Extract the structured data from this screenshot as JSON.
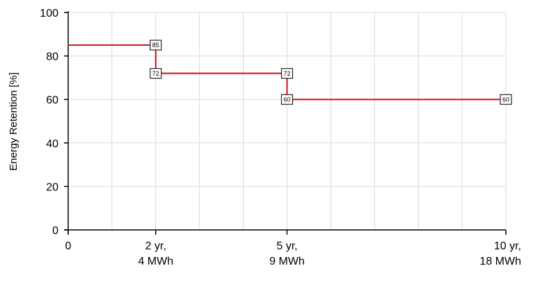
{
  "chart_data": {
    "type": "line",
    "title": "",
    "xlabel": "",
    "ylabel": "Energy Retention [%]",
    "xlim": [
      0,
      10
    ],
    "ylim": [
      0,
      100
    ],
    "grid": true,
    "step": true,
    "y_ticks": [
      0,
      20,
      40,
      60,
      80,
      100
    ],
    "x_ticks": [
      {
        "x": 0,
        "lines": [
          "0"
        ]
      },
      {
        "x": 2,
        "lines": [
          "2 yr,",
          "4 MWh"
        ]
      },
      {
        "x": 5,
        "lines": [
          "5 yr,",
          "9 MWh"
        ]
      },
      {
        "x": 10,
        "lines": [
          "10 yr,",
          "18 MWh"
        ]
      }
    ],
    "x_grid": [
      1,
      2,
      3,
      4,
      5,
      6,
      7,
      8,
      9,
      10
    ],
    "series": [
      {
        "color": "#d42020",
        "points": [
          {
            "x": 0,
            "y": 85
          },
          {
            "x": 2,
            "y": 85
          },
          {
            "x": 2,
            "y": 72
          },
          {
            "x": 5,
            "y": 72
          },
          {
            "x": 5,
            "y": 60
          },
          {
            "x": 10,
            "y": 60
          }
        ]
      }
    ],
    "markers": [
      {
        "x": 2,
        "y": 85,
        "label": "85"
      },
      {
        "x": 2,
        "y": 72,
        "label": "72"
      },
      {
        "x": 5,
        "y": 72,
        "label": "72"
      },
      {
        "x": 5,
        "y": 60,
        "label": "60"
      },
      {
        "x": 10,
        "y": 60,
        "label": "60"
      }
    ],
    "colors": {
      "line": "#d42020",
      "axis": "#000000",
      "grid": "#d9d9d9"
    }
  }
}
